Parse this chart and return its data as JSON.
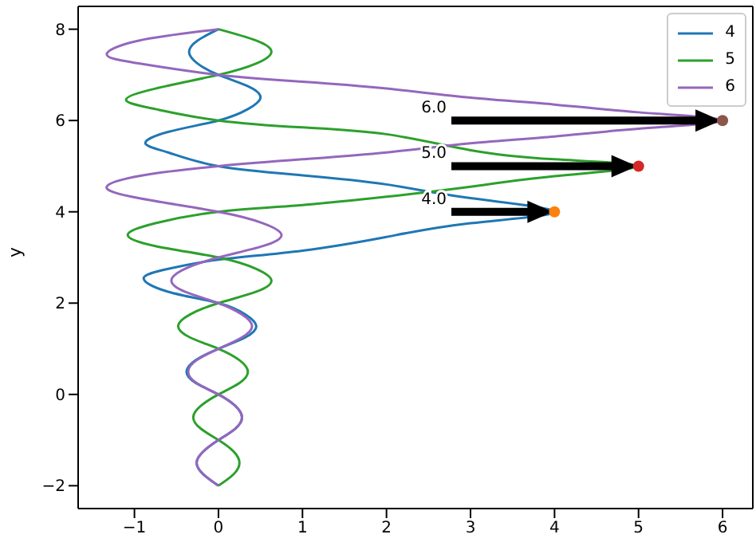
{
  "chart_data": {
    "type": "line",
    "ylabel": "y",
    "xlim": [
      -1.67,
      6.36
    ],
    "ylim": [
      -2.5,
      8.5
    ],
    "xticks": [
      -1,
      0,
      1,
      2,
      3,
      4,
      5,
      6
    ],
    "yticks": [
      -2,
      0,
      2,
      4,
      6,
      8
    ],
    "legend": "top right",
    "marker": "none",
    "series": [
      {
        "name": "4",
        "color": "#1f77b4",
        "x": [
          0,
          -0.18,
          -0.26,
          -0.18,
          0,
          0.2,
          0.28,
          0.2,
          0,
          -0.27,
          -0.38,
          -0.27,
          0,
          0.32,
          0.45,
          0.32,
          0,
          -0.6,
          -0.89,
          -0.6,
          0,
          1,
          2,
          3,
          4,
          3,
          2,
          1,
          0,
          -0.6,
          -0.87,
          -0.6,
          0,
          0.35,
          0.5,
          0.35,
          0,
          -0.25,
          -0.35,
          -0.25,
          0
        ],
        "values": [
          -2,
          -1.75,
          -1.5,
          -1.25,
          -1,
          -0.75,
          -0.5,
          -0.25,
          0,
          0.25,
          0.5,
          0.75,
          1,
          1.25,
          1.5,
          1.75,
          2,
          2.25,
          2.55,
          2.75,
          2.95,
          3.15,
          3.45,
          3.75,
          4,
          4.3,
          4.6,
          4.8,
          5,
          5.3,
          5.5,
          5.75,
          6,
          6.25,
          6.5,
          6.75,
          7,
          7.25,
          7.5,
          7.75,
          8
        ]
      },
      {
        "name": "5",
        "color": "#2ca02c",
        "x": [
          0,
          0.18,
          0.25,
          0.18,
          0,
          -0.21,
          -0.3,
          -0.21,
          0,
          0.25,
          0.35,
          0.25,
          0,
          -0.34,
          -0.48,
          -0.34,
          0,
          0.45,
          0.63,
          0.45,
          0,
          -0.75,
          -1.08,
          -0.75,
          0,
          1,
          2,
          3,
          4,
          5,
          4,
          3,
          2,
          1,
          0,
          -0.75,
          -1.1,
          -0.75,
          0,
          0.45,
          0.63,
          0.45,
          0
        ],
        "values": [
          -2,
          -1.75,
          -1.5,
          -1.25,
          -1,
          -0.75,
          -0.5,
          -0.25,
          0,
          0.25,
          0.5,
          0.75,
          1,
          1.25,
          1.5,
          1.75,
          2,
          2.25,
          2.5,
          2.75,
          3,
          3.25,
          3.5,
          3.75,
          4,
          4.15,
          4.33,
          4.55,
          4.78,
          5,
          5.15,
          5.35,
          5.7,
          5.85,
          6,
          6.25,
          6.45,
          6.7,
          7,
          7.25,
          7.5,
          7.75,
          8
        ]
      },
      {
        "name": "6",
        "color": "#9467bd",
        "x": [
          0,
          -0.18,
          -0.26,
          -0.18,
          0,
          0.2,
          0.28,
          0.2,
          0,
          -0.26,
          -0.36,
          -0.26,
          0,
          0.28,
          0.4,
          0.28,
          0,
          -0.4,
          -0.56,
          -0.4,
          0,
          0.53,
          0.75,
          0.53,
          0,
          -0.95,
          -1.33,
          -0.9,
          0,
          1,
          2,
          3,
          4,
          5,
          6,
          5,
          4,
          3,
          2,
          1,
          0,
          -0.95,
          -1.33,
          -0.95,
          0
        ],
        "values": [
          -2,
          -1.75,
          -1.5,
          -1.25,
          -1,
          -0.75,
          -0.5,
          -0.25,
          0,
          0.25,
          0.5,
          0.75,
          1,
          1.25,
          1.5,
          1.75,
          2,
          2.25,
          2.5,
          2.75,
          3,
          3.25,
          3.5,
          3.75,
          4,
          4.3,
          4.55,
          4.8,
          5,
          5.15,
          5.3,
          5.5,
          5.65,
          5.82,
          6,
          6.18,
          6.35,
          6.5,
          6.7,
          6.85,
          7,
          7.25,
          7.45,
          7.75,
          8
        ]
      },
      {
        "type": "scatter",
        "marker": "circle",
        "color": "#ff7f0e",
        "x": [
          4
        ],
        "values": [
          4
        ]
      },
      {
        "type": "scatter",
        "marker": "circle",
        "color": "#d62728",
        "x": [
          5
        ],
        "values": [
          5
        ]
      },
      {
        "type": "scatter",
        "marker": "circle",
        "color": "#8c564b",
        "x": [
          6
        ],
        "values": [
          6
        ]
      }
    ],
    "annotations": [
      "4.0",
      "5.0",
      "6.0"
    ]
  }
}
